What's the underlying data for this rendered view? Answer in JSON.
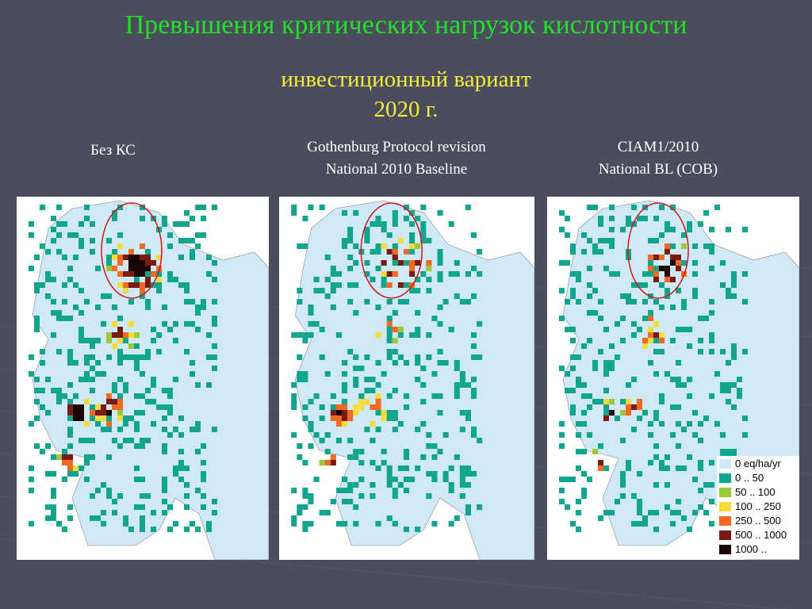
{
  "slide": {
    "title": "Превышения критических нагрузок кислотности",
    "subtitle_line1": "инвестиционный вариант",
    "subtitle_line2": "2020 г."
  },
  "maps": [
    {
      "caption_line1": "Без КС",
      "caption_line2": ""
    },
    {
      "caption_line1": "Gothenburg Protocol revision",
      "caption_line2": "National 2010 Baseline"
    },
    {
      "caption_line1": "CIAM1/2010",
      "caption_line2": "National BL (COB)"
    }
  ],
  "legend": [
    {
      "label": "0 eq/ha/yr",
      "color": "#cfe9f7"
    },
    {
      "label": "0 .. 50",
      "color": "#12a58e"
    },
    {
      "label": "50 .. 100",
      "color": "#9dc83c"
    },
    {
      "label": "100 .. 250",
      "color": "#f4dc3c"
    },
    {
      "label": "250 .. 500",
      "color": "#ef6a22"
    },
    {
      "label": "500 .. 1000",
      "color": "#7a1a14"
    },
    {
      "label": "1000 ..",
      "color": "#1c0404"
    }
  ],
  "colors": {
    "background": "#4b4d5c",
    "title": "#22e02a",
    "subtitle": "#f0ee3a",
    "highlight_ellipse": "#d01818"
  }
}
